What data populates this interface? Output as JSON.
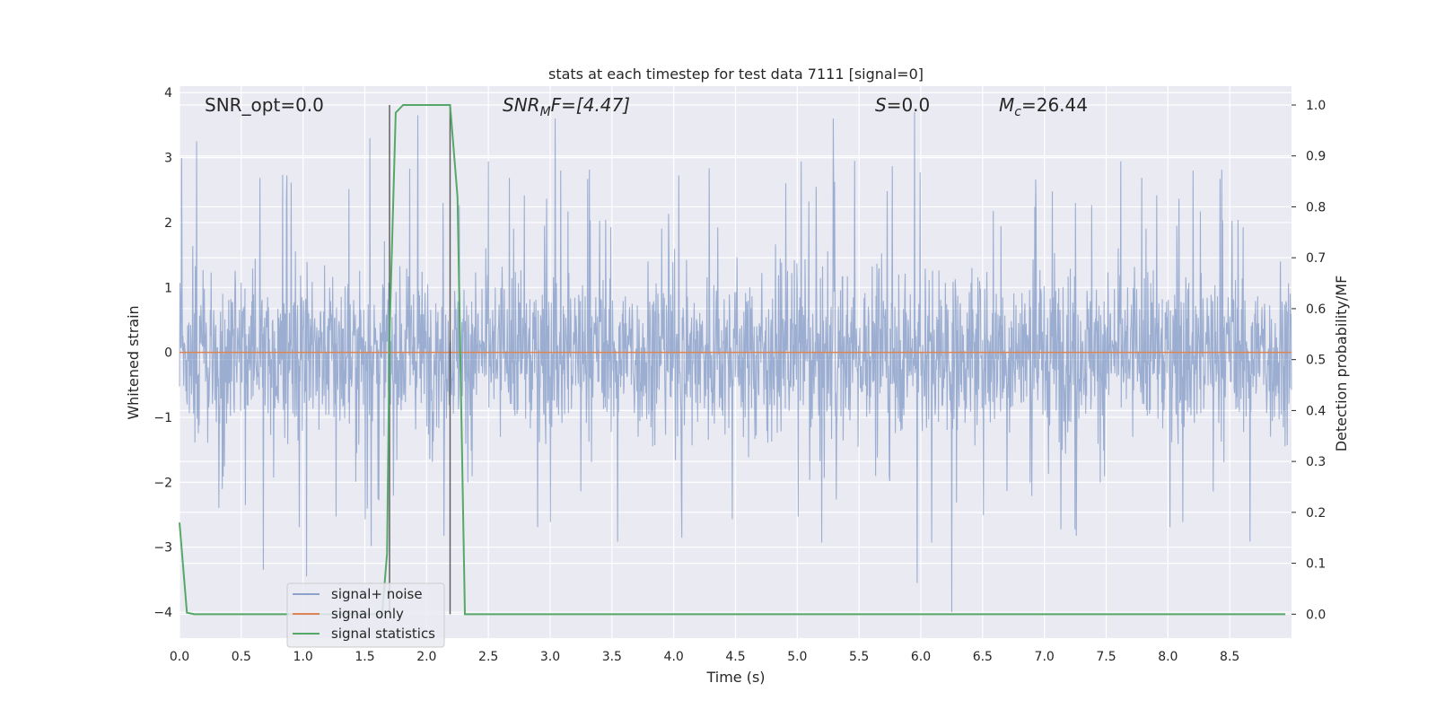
{
  "chart_data": {
    "type": "line",
    "title": "stats at each timestep for test data 7111 [signal=0]",
    "xlabel": "Time (s)",
    "ylabel": "Whitened strain",
    "y2label": "Detection probability/MF",
    "xlim": [
      0.0,
      9.0
    ],
    "ylim": [
      -4.4,
      4.1
    ],
    "y2lim": [
      -0.047,
      1.037
    ],
    "xticks": [
      "0.0",
      "0.5",
      "1.0",
      "1.5",
      "2.0",
      "2.5",
      "3.0",
      "3.5",
      "4.0",
      "4.5",
      "5.0",
      "5.5",
      "6.0",
      "6.5",
      "7.0",
      "7.5",
      "8.0",
      "8.5"
    ],
    "yticks": [
      "4",
      "3",
      "2",
      "1",
      "0",
      "−1",
      "−2",
      "−3",
      "−4"
    ],
    "y2ticks": [
      "1.0",
      "0.9",
      "0.8",
      "0.7",
      "0.6",
      "0.5",
      "0.4",
      "0.3",
      "0.2",
      "0.1",
      "0.0"
    ],
    "annotations": {
      "snr_opt": "SNR_opt=0.0",
      "snr_mf_main": "SNR",
      "snr_mf_sub": "M",
      "snr_mf_tail": "F=[4.47]",
      "s_main": "S",
      "s_tail": "=0.0",
      "mc_main": "M",
      "mc_sub": "c",
      "mc_tail": "=26.44"
    },
    "noise_envelope": {
      "typical_amplitude": 1.7,
      "peak_upper": 3.7,
      "peak_lower": -4.0,
      "notable_spikes": [
        {
          "x": 0.14,
          "y": 3.25
        },
        {
          "x": 0.68,
          "y": -3.35
        },
        {
          "x": 1.03,
          "y": -3.45
        },
        {
          "x": 1.54,
          "y": 3.3
        },
        {
          "x": 1.93,
          "y": 3.65
        },
        {
          "x": 3.04,
          "y": 3.6
        },
        {
          "x": 5.29,
          "y": 3.6
        },
        {
          "x": 5.95,
          "y": 3.7
        },
        {
          "x": 6.25,
          "y": -4.0
        },
        {
          "x": 5.97,
          "y": -3.55
        }
      ]
    },
    "vertical_markers": [
      1.7,
      2.19
    ],
    "series": [
      {
        "name": "signal+ noise",
        "color": "#4c72b0",
        "axis": "left"
      },
      {
        "name": "signal only",
        "color": "#dd8452",
        "axis": "left",
        "x": [
          0.0,
          9.0
        ],
        "y": [
          0.0,
          0.0
        ]
      },
      {
        "name": "signal statistics",
        "color": "#55a868",
        "axis": "right",
        "x": [
          0.0,
          0.06,
          0.12,
          1.5,
          1.64,
          1.68,
          1.7,
          1.75,
          1.81,
          2.19,
          2.25,
          2.31,
          8.95
        ],
        "y": [
          0.18,
          0.003,
          0.0,
          0.0,
          0.0,
          0.12,
          0.55,
          0.985,
          1.0,
          1.0,
          0.82,
          0.0,
          0.0
        ]
      }
    ],
    "legend": {
      "placement": "lower-left"
    },
    "grid": true
  }
}
